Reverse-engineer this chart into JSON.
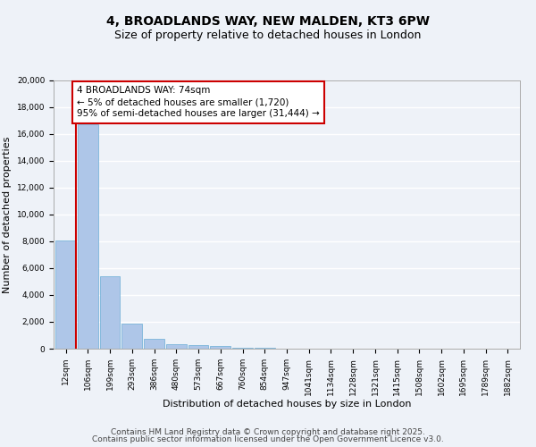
{
  "title": "4, BROADLANDS WAY, NEW MALDEN, KT3 6PW",
  "subtitle": "Size of property relative to detached houses in London",
  "xlabel": "Distribution of detached houses by size in London",
  "ylabel": "Number of detached properties",
  "categories": [
    "12sqm",
    "106sqm",
    "199sqm",
    "293sqm",
    "386sqm",
    "480sqm",
    "573sqm",
    "667sqm",
    "760sqm",
    "854sqm",
    "947sqm",
    "1041sqm",
    "1134sqm",
    "1228sqm",
    "1321sqm",
    "1415sqm",
    "1508sqm",
    "1602sqm",
    "1695sqm",
    "1789sqm",
    "1882sqm"
  ],
  "values": [
    8100,
    16700,
    5400,
    1850,
    750,
    350,
    250,
    200,
    100,
    50,
    30,
    20,
    15,
    10,
    8,
    6,
    5,
    4,
    3,
    2,
    1
  ],
  "bar_color": "#aec6e8",
  "bar_edgecolor": "#6aaed6",
  "ylim": [
    0,
    20000
  ],
  "yticks": [
    0,
    2000,
    4000,
    6000,
    8000,
    10000,
    12000,
    14000,
    16000,
    18000,
    20000
  ],
  "red_line_x": 0.45,
  "annotation_text": "4 BROADLANDS WAY: 74sqm\n← 5% of detached houses are smaller (1,720)\n95% of semi-detached houses are larger (31,444) →",
  "annotation_box_color": "#ffffff",
  "annotation_box_edgecolor": "#cc0000",
  "footer_line1": "Contains HM Land Registry data © Crown copyright and database right 2025.",
  "footer_line2": "Contains public sector information licensed under the Open Government Licence v3.0.",
  "background_color": "#eef2f8",
  "grid_color": "#ffffff",
  "title_fontsize": 10,
  "subtitle_fontsize": 9,
  "tick_fontsize": 6.5,
  "ylabel_fontsize": 8,
  "xlabel_fontsize": 8,
  "footer_fontsize": 6.5,
  "annotation_fontsize": 7.5
}
